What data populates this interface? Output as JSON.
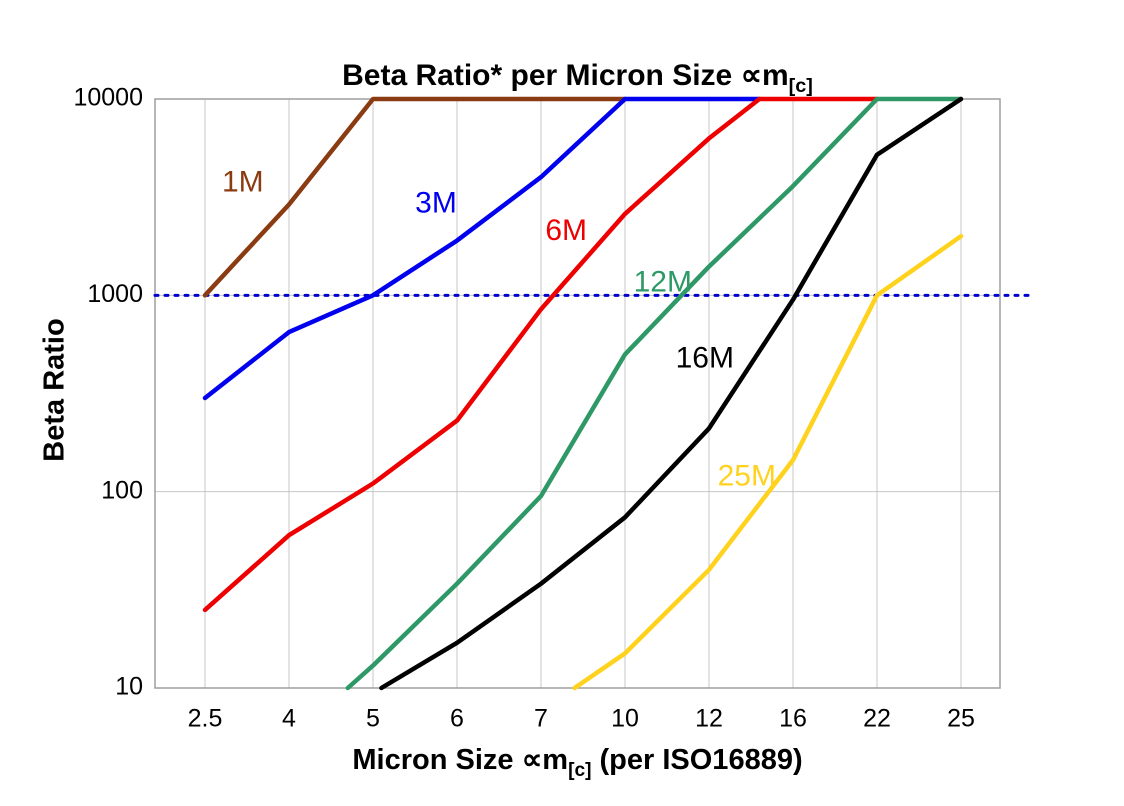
{
  "chart_data": {
    "type": "line",
    "title": "Beta Ratio* per Micron Size ∝m[c]",
    "title_parts": {
      "pre": "Beta Ratio* per Micron Size ∝m",
      "sub": "[c]"
    },
    "xlabel": "Micron Size ∝m[c] (per ISO16889)",
    "xlabel_parts": {
      "pre": "Micron Size ∝m",
      "sub": "[c]",
      "post": " (per ISO16889)"
    },
    "ylabel": "Beta Ratio",
    "x_categories": [
      "2.5",
      "4",
      "5",
      "6",
      "7",
      "10",
      "12",
      "16",
      "22",
      "25"
    ],
    "y_ticks": [
      "10",
      "100",
      "1000",
      "10000"
    ],
    "y_scale": "log",
    "ylim": [
      10,
      10000
    ],
    "grid": true,
    "grid_color": "#c7c7c7",
    "border_color": "#9e9e9e",
    "reference_line": {
      "y": 1000,
      "color": "#0000cc",
      "style": "dotted"
    },
    "series": [
      {
        "name": "1M",
        "color": "#8a3b12",
        "label": {
          "xi": 0.45,
          "v": 3700
        },
        "points": [
          [
            0,
            1000
          ],
          [
            1,
            2900
          ],
          [
            2,
            10000
          ],
          [
            5,
            10000
          ]
        ]
      },
      {
        "name": "3M",
        "color": "#0000ee",
        "label": {
          "xi": 2.75,
          "v": 2900
        },
        "points": [
          [
            0,
            300
          ],
          [
            1,
            650
          ],
          [
            2,
            1000
          ],
          [
            3,
            1900
          ],
          [
            4,
            4000
          ],
          [
            5,
            10000
          ],
          [
            6.6,
            10000
          ]
        ]
      },
      {
        "name": "6M",
        "color": "#ee0000",
        "label": {
          "xi": 4.3,
          "v": 2100
        },
        "points": [
          [
            0,
            25
          ],
          [
            1,
            60
          ],
          [
            2,
            110
          ],
          [
            3,
            230
          ],
          [
            4,
            850
          ],
          [
            5,
            2600
          ],
          [
            6,
            6300
          ],
          [
            6.6,
            10000
          ],
          [
            8,
            10000
          ]
        ]
      },
      {
        "name": "12M",
        "color": "#2e9966",
        "label": {
          "xi": 5.45,
          "v": 1150
        },
        "points": [
          [
            1.7,
            10
          ],
          [
            2,
            13
          ],
          [
            3,
            34
          ],
          [
            4,
            95
          ],
          [
            5,
            500
          ],
          [
            6,
            1400
          ],
          [
            7,
            3600
          ],
          [
            8,
            10000
          ],
          [
            9,
            10000
          ]
        ]
      },
      {
        "name": "16M",
        "color": "#000000",
        "label": {
          "xi": 5.95,
          "v": 470
        },
        "points": [
          [
            2.1,
            10
          ],
          [
            3,
            17
          ],
          [
            4,
            34
          ],
          [
            5,
            74
          ],
          [
            6,
            210
          ],
          [
            7,
            950
          ],
          [
            8,
            5200
          ],
          [
            9,
            10000
          ]
        ]
      },
      {
        "name": "25M",
        "color": "#ffd21e",
        "label": {
          "xi": 6.45,
          "v": 118
        },
        "points": [
          [
            4.4,
            10
          ],
          [
            5,
            15
          ],
          [
            6,
            40
          ],
          [
            7,
            145
          ],
          [
            8,
            1000
          ],
          [
            9,
            2000
          ]
        ]
      }
    ]
  }
}
